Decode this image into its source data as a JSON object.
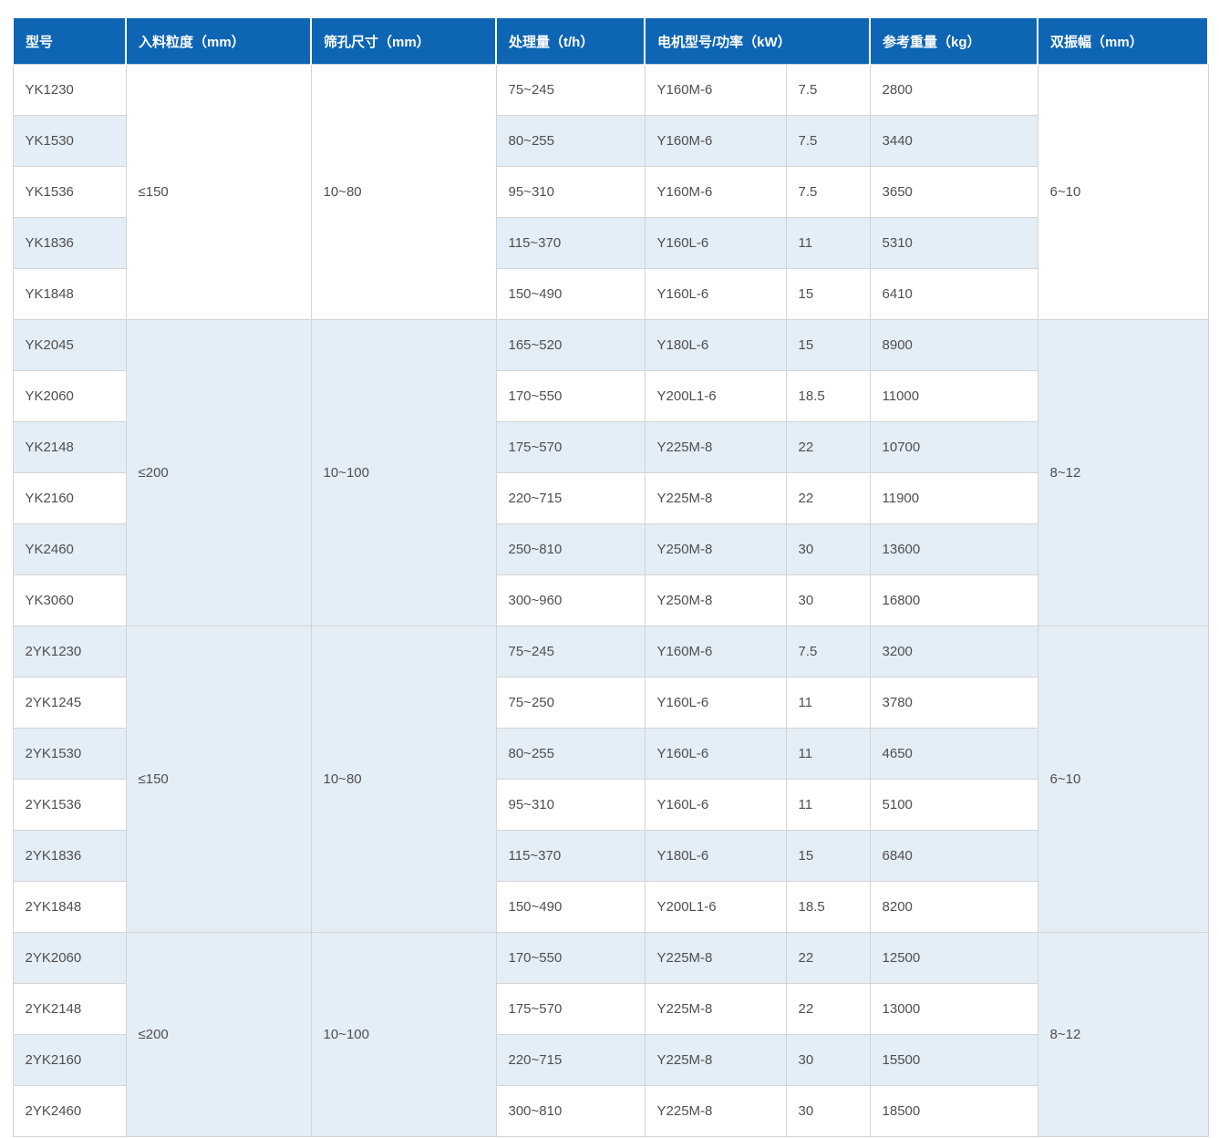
{
  "colors": {
    "header_bg": "#0d65b4",
    "header_text": "#ffffff",
    "stripe_bg": "#e4eef7",
    "row_bg": "#ffffff",
    "border": "#d4d4d4",
    "header_divider": "#c9d3da",
    "text": "#4f4f4f"
  },
  "table": {
    "headers": [
      "型号",
      "入料粒度（mm）",
      "筛孔尺寸（mm）",
      "处理量（t/h）",
      "电机型号/功率（kW）",
      "参考重量（kg）",
      "双振幅（mm）"
    ],
    "groups": [
      {
        "feed_size": "≤150",
        "mesh_size": "10~80",
        "amplitude": "6~10",
        "rows": [
          {
            "model": "YK1230",
            "capacity": "75~245",
            "motor_model": "Y160M-6",
            "power_kw": "7.5",
            "weight_kg": "2800"
          },
          {
            "model": "YK1530",
            "capacity": "80~255",
            "motor_model": "Y160M-6",
            "power_kw": "7.5",
            "weight_kg": "3440"
          },
          {
            "model": "YK1536",
            "capacity": "95~310",
            "motor_model": "Y160M-6",
            "power_kw": "7.5",
            "weight_kg": "3650"
          },
          {
            "model": "YK1836",
            "capacity": "115~370",
            "motor_model": "Y160L-6",
            "power_kw": "11",
            "weight_kg": "5310"
          },
          {
            "model": "YK1848",
            "capacity": "150~490",
            "motor_model": "Y160L-6",
            "power_kw": "15",
            "weight_kg": "6410"
          }
        ]
      },
      {
        "feed_size": "≤200",
        "mesh_size": "10~100",
        "amplitude": "8~12",
        "rows": [
          {
            "model": "YK2045",
            "capacity": "165~520",
            "motor_model": "Y180L-6",
            "power_kw": "15",
            "weight_kg": "8900"
          },
          {
            "model": "YK2060",
            "capacity": "170~550",
            "motor_model": "Y200L1-6",
            "power_kw": "18.5",
            "weight_kg": "11000"
          },
          {
            "model": "YK2148",
            "capacity": "175~570",
            "motor_model": "Y225M-8",
            "power_kw": "22",
            "weight_kg": "10700"
          },
          {
            "model": "YK2160",
            "capacity": "220~715",
            "motor_model": "Y225M-8",
            "power_kw": "22",
            "weight_kg": "11900"
          },
          {
            "model": "YK2460",
            "capacity": "250~810",
            "motor_model": "Y250M-8",
            "power_kw": "30",
            "weight_kg": "13600"
          },
          {
            "model": "YK3060",
            "capacity": "300~960",
            "motor_model": "Y250M-8",
            "power_kw": "30",
            "weight_kg": "16800"
          }
        ]
      },
      {
        "feed_size": "≤150",
        "mesh_size": "10~80",
        "amplitude": "6~10",
        "rows": [
          {
            "model": "2YK1230",
            "capacity": "75~245",
            "motor_model": "Y160M-6",
            "power_kw": "7.5",
            "weight_kg": "3200"
          },
          {
            "model": "2YK1245",
            "capacity": "75~250",
            "motor_model": "Y160L-6",
            "power_kw": "11",
            "weight_kg": "3780"
          },
          {
            "model": "2YK1530",
            "capacity": "80~255",
            "motor_model": "Y160L-6",
            "power_kw": "11",
            "weight_kg": "4650"
          },
          {
            "model": "2YK1536",
            "capacity": "95~310",
            "motor_model": "Y160L-6",
            "power_kw": "11",
            "weight_kg": "5100"
          },
          {
            "model": "2YK1836",
            "capacity": "115~370",
            "motor_model": "Y180L-6",
            "power_kw": "15",
            "weight_kg": "6840"
          },
          {
            "model": "2YK1848",
            "capacity": "150~490",
            "motor_model": "Y200L1-6",
            "power_kw": "18.5",
            "weight_kg": "8200"
          }
        ]
      },
      {
        "feed_size": "≤200",
        "mesh_size": "10~100",
        "amplitude": "8~12",
        "rows": [
          {
            "model": "2YK2060",
            "capacity": "170~550",
            "motor_model": "Y225M-8",
            "power_kw": "22",
            "weight_kg": "12500"
          },
          {
            "model": "2YK2148",
            "capacity": "175~570",
            "motor_model": "Y225M-8",
            "power_kw": "22",
            "weight_kg": "13000"
          },
          {
            "model": "2YK2160",
            "capacity": "220~715",
            "motor_model": "Y225M-8",
            "power_kw": "30",
            "weight_kg": "15500"
          },
          {
            "model": "2YK2460",
            "capacity": "300~810",
            "motor_model": "Y225M-8",
            "power_kw": "30",
            "weight_kg": "18500"
          }
        ]
      }
    ]
  }
}
